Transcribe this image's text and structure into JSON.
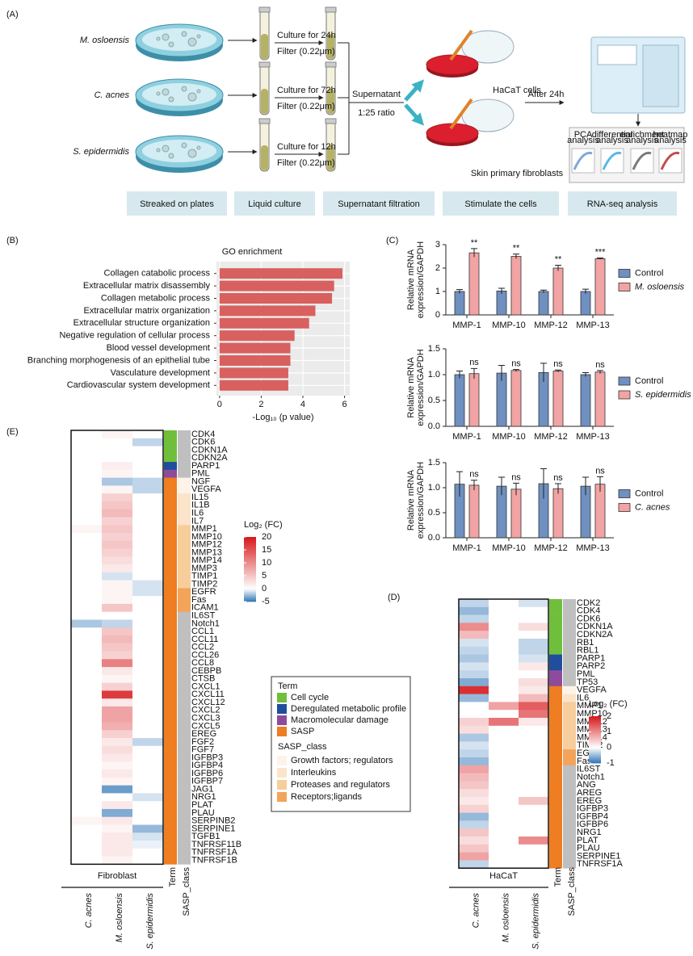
{
  "figure_a": {
    "panel": "(A)",
    "strains": [
      "M. osloensis",
      "C. acnes",
      "S. epidermidis"
    ],
    "culture": [
      {
        "time": "Culture for 24h",
        "filter": "Filter (0.22μm)"
      },
      {
        "time": "Culture for 72h",
        "filter": "Filter (0.22μm)"
      },
      {
        "time": "Culture for 12h",
        "filter": "Filter (0.22μm)"
      }
    ],
    "supernatant": "Supernatant",
    "ratio": "1:25 ratio",
    "cells": [
      "HaCaT cells",
      "Skin primary fibroblasts"
    ],
    "after": "After 24h",
    "analyses": [
      [
        "PCA",
        "analysis"
      ],
      [
        "differential",
        "analysis"
      ],
      [
        "enrichment",
        "analysis"
      ],
      [
        "heatmap",
        "analysis"
      ]
    ],
    "steps": [
      "Streaked on plates",
      "Liquid culture",
      "Supernatant filtration",
      "Stimulate the cells",
      "RNA-seq analysis"
    ]
  },
  "chart_data": [
    {
      "type": "hbar",
      "panel": "(B)",
      "title": "GO enrichment",
      "xlabel": "-Log₁₀ (p value)",
      "categories": [
        "Collagen catabolic process",
        "Extracellular matrix disassembly",
        "Collagen metabolic process",
        "Extracellular matrix organization",
        "Extracellular structure organization",
        "Negative regulation of cellular process",
        "Blood vessel development",
        "Branching morphogenesis of an epithelial tube",
        "Vasculature development",
        "Cardiovascular system development"
      ],
      "values": [
        5.9,
        5.5,
        5.4,
        4.6,
        4.3,
        3.6,
        3.4,
        3.4,
        3.3,
        3.3
      ],
      "color": "#d8605e",
      "xlim": [
        -0.15,
        6.25
      ],
      "xticks": [
        0,
        2,
        4,
        6
      ],
      "grid": true
    },
    {
      "type": "bar",
      "panel": "(C)",
      "ylabel": [
        "Relative mRNA",
        "expression/GAPDH"
      ],
      "categories": [
        "MMP-1",
        "MMP-10",
        "MMP-12",
        "MMP-13"
      ],
      "series": [
        {
          "name": "Control",
          "color": "#6f90c0",
          "values": [
            1.0,
            1.02,
            1.0,
            1.0
          ],
          "errors": [
            0.08,
            0.12,
            0.06,
            0.1
          ]
        },
        {
          "name": "M. osloensis",
          "color": "#f2a3a3",
          "values": [
            2.65,
            2.5,
            2.0,
            2.4
          ],
          "errors": [
            0.18,
            0.1,
            0.12,
            0.03
          ],
          "annotations": [
            "**",
            "**",
            "**",
            "***"
          ]
        }
      ],
      "ylim": [
        0,
        3
      ],
      "yticks": [
        0,
        1,
        2,
        3
      ]
    },
    {
      "type": "bar",
      "ylabel": [
        "Relative mRNA",
        "expression/GAPDH"
      ],
      "categories": [
        "MMP-1",
        "MMP-10",
        "MMP-12",
        "MMP-13"
      ],
      "series": [
        {
          "name": "Control",
          "color": "#6f90c0",
          "values": [
            1.0,
            1.03,
            1.04,
            1.0
          ],
          "errors": [
            0.07,
            0.15,
            0.18,
            0.04
          ]
        },
        {
          "name": "S. epidermidis",
          "color": "#f2a3a3",
          "values": [
            1.02,
            1.08,
            1.07,
            1.05
          ],
          "errors": [
            0.1,
            0.02,
            0.02,
            0.03
          ],
          "annotations": [
            "ns",
            "ns",
            "ns",
            "ns"
          ]
        }
      ],
      "ylim": [
        0,
        1.5
      ],
      "yticks": [
        {
          "value": 0,
          "label": "0.0"
        },
        0.5,
        {
          "value": 1,
          "label": "1.0"
        },
        1.5
      ]
    },
    {
      "type": "bar",
      "ylabel": [
        "Relative mRNA",
        "expression/GAPDH"
      ],
      "categories": [
        "MMP-1",
        "MMP-10",
        "MMP-12",
        "MMP-13"
      ],
      "series": [
        {
          "name": "Control",
          "color": "#6f90c0",
          "values": [
            1.07,
            1.03,
            1.08,
            1.03
          ],
          "errors": [
            0.25,
            0.18,
            0.3,
            0.18
          ]
        },
        {
          "name": "C. acnes",
          "color": "#f2a3a3",
          "values": [
            1.05,
            0.97,
            0.98,
            1.07
          ],
          "errors": [
            0.1,
            0.12,
            0.1,
            0.15
          ],
          "annotations": [
            "ns",
            "ns",
            "ns",
            "ns"
          ]
        }
      ],
      "ylim": [
        0,
        1.5
      ],
      "yticks": [
        {
          "value": 0,
          "label": "0.0"
        },
        0.5,
        {
          "value": 1,
          "label": "1.0"
        },
        1.5
      ]
    },
    {
      "type": "heatmap",
      "panel": "(E)",
      "group": "Fibroblast",
      "columns": [
        "C. acnes",
        "M. osloensis",
        "S. epidermidis"
      ],
      "extra_columns": [
        "Term",
        "SASP_class"
      ],
      "rows": [
        "CDK4",
        "CDK6",
        "CDKN1A",
        "CDKN2A",
        "PARP1",
        "PML",
        "NGF",
        "VEGFA",
        "IL15",
        "IL1B",
        "IL6",
        "IL7",
        "MMP1",
        "MMP10",
        "MMP12",
        "MMP13",
        "MMP14",
        "MMP3",
        "TIMP1",
        "TIMP2",
        "EGFR",
        "Fas",
        "ICAM1",
        "IL6ST",
        "Notch1",
        "CCL1",
        "CCL11",
        "CCL2",
        "CCL26",
        "CCL8",
        "CEBPB",
        "CTSB",
        "CXCL1",
        "CXCL11",
        "CXCL12",
        "CXCL2",
        "CXCL3",
        "CXCL5",
        "EREG",
        "FGF2",
        "FGF7",
        "IGFBP3",
        "IGFBP4",
        "IGFBP6",
        "IGFBP7",
        "JAG1",
        "NRG1",
        "PLAT",
        "PLAU",
        "SERPINB2",
        "SERPINE1",
        "TGFB1",
        "TNFRSF11B",
        "TNFRSF1A",
        "TNFRSF1B"
      ],
      "values": [
        [
          0,
          1,
          0
        ],
        [
          0,
          0,
          -1.5
        ],
        [
          0,
          0,
          0
        ],
        [
          0,
          0,
          0
        ],
        [
          0,
          1.5,
          0
        ],
        [
          0,
          1,
          0
        ],
        [
          0,
          -2,
          -1.5
        ],
        [
          0,
          1,
          -1.5
        ],
        [
          0,
          4,
          0
        ],
        [
          0,
          5,
          0
        ],
        [
          0,
          6,
          0
        ],
        [
          0,
          4,
          0
        ],
        [
          1,
          5,
          0
        ],
        [
          0,
          4,
          0
        ],
        [
          0,
          5,
          0
        ],
        [
          0,
          4,
          0
        ],
        [
          0,
          3,
          0
        ],
        [
          0,
          2,
          0
        ],
        [
          0,
          -1,
          0
        ],
        [
          0,
          1,
          -1
        ],
        [
          0,
          1,
          -1
        ],
        [
          0,
          1,
          0
        ],
        [
          0,
          5,
          0
        ],
        [
          0,
          0,
          0
        ],
        [
          -2,
          -1.5,
          0
        ],
        [
          0,
          5,
          0
        ],
        [
          0,
          6,
          0
        ],
        [
          0,
          5,
          0
        ],
        [
          0,
          4,
          0
        ],
        [
          0,
          11,
          0
        ],
        [
          0,
          2,
          0
        ],
        [
          0,
          1,
          0
        ],
        [
          0,
          4,
          0
        ],
        [
          0,
          17,
          0
        ],
        [
          0,
          2,
          0
        ],
        [
          0,
          8,
          0
        ],
        [
          0,
          8,
          0
        ],
        [
          0,
          7,
          0
        ],
        [
          0,
          4,
          0
        ],
        [
          0,
          2,
          -1.5
        ],
        [
          0,
          3,
          0
        ],
        [
          0,
          2,
          0
        ],
        [
          0,
          1,
          0
        ],
        [
          0,
          2,
          0
        ],
        [
          0,
          1,
          0
        ],
        [
          0,
          -3.5,
          0
        ],
        [
          0,
          0,
          -1
        ],
        [
          0,
          2,
          0
        ],
        [
          0,
          -3,
          0
        ],
        [
          1,
          2,
          0
        ],
        [
          0,
          1,
          -2.5
        ],
        [
          0,
          2,
          -1
        ],
        [
          0,
          2,
          -0.5
        ],
        [
          0,
          2,
          0
        ],
        [
          0,
          1,
          0
        ]
      ],
      "term": [
        0,
        0,
        0,
        0,
        1,
        2,
        3,
        3,
        3,
        3,
        3,
        3,
        3,
        3,
        3,
        3,
        3,
        3,
        3,
        3,
        3,
        3,
        3,
        3,
        3,
        3,
        3,
        3,
        3,
        3,
        3,
        3,
        3,
        3,
        3,
        3,
        3,
        3,
        3,
        3,
        3,
        3,
        3,
        3,
        3,
        3,
        3,
        3,
        3,
        3,
        3,
        3,
        3,
        3,
        3
      ],
      "sasp_class": [
        null,
        null,
        null,
        null,
        null,
        null,
        0,
        0,
        1,
        1,
        1,
        1,
        2,
        2,
        2,
        2,
        2,
        2,
        2,
        2,
        3,
        3,
        3,
        null,
        null,
        null,
        null,
        null,
        null,
        null,
        null,
        null,
        null,
        null,
        null,
        null,
        null,
        null,
        null,
        null,
        null,
        null,
        null,
        null,
        null,
        null,
        null,
        null,
        null,
        null,
        null,
        null,
        null,
        null,
        null
      ],
      "colorbar_title": "Log₂ (FC)",
      "zlim": [
        -5,
        20
      ],
      "zticks": [
        20,
        15,
        10,
        5,
        0,
        -5
      ],
      "colors": {
        "low": "#2c73b4",
        "mid": "#ffffff",
        "high": "#d7191c"
      }
    },
    {
      "type": "heatmap",
      "panel": "(D)",
      "group": "HaCaT",
      "columns": [
        "C. acnes",
        "M. osloensis",
        "S. epidermidis"
      ],
      "extra_columns": [
        "Term",
        "SASP_class"
      ],
      "rows": [
        "CDK2",
        "CDK4",
        "CDK6",
        "CDKN1A",
        "CDKN2A",
        "RB1",
        "RBL1",
        "PARP1",
        "PARP2",
        "PML",
        "TP53",
        "VEGFA",
        "IL6",
        "MMP1",
        "MMP10",
        "MMP12",
        "MMP13",
        "MMP14",
        "TIMP2",
        "EGFR",
        "Fas",
        "IL6ST",
        "Notch1",
        "ANG",
        "AREG",
        "EREG",
        "IGFBP3",
        "IGFBP4",
        "IGFBP6",
        "NRG1",
        "PLAT",
        "PLAU",
        "SERPINE1",
        "TNFRSF1A"
      ],
      "values": [
        [
          -0.3,
          0,
          -0.2
        ],
        [
          -0.5,
          0,
          0
        ],
        [
          -0.3,
          0,
          0
        ],
        [
          1,
          0,
          0.3
        ],
        [
          0.6,
          0,
          0
        ],
        [
          -0.2,
          0,
          -0.3
        ],
        [
          -0.3,
          0,
          -0.3
        ],
        [
          -0.4,
          0,
          -0.2
        ],
        [
          -0.2,
          0,
          0.2
        ],
        [
          -0.3,
          0,
          0
        ],
        [
          -0.6,
          0,
          0.3
        ],
        [
          1.8,
          0,
          0.2
        ],
        [
          -0.5,
          0,
          0.6
        ],
        [
          0,
          0.8,
          1.4
        ],
        [
          0,
          0,
          1.2
        ],
        [
          0.4,
          1.2,
          0.2
        ],
        [
          0.3,
          0,
          0
        ],
        [
          -0.4,
          0,
          0
        ],
        [
          -0.2,
          0,
          0
        ],
        [
          -0.3,
          0,
          0
        ],
        [
          -0.5,
          0,
          0
        ],
        [
          0.8,
          0,
          0
        ],
        [
          0.6,
          0,
          0
        ],
        [
          0.5,
          0,
          0
        ],
        [
          0.3,
          0,
          0
        ],
        [
          0.2,
          0,
          0.5
        ],
        [
          0.4,
          0,
          0
        ],
        [
          -0.5,
          0,
          0
        ],
        [
          -0.3,
          0,
          0
        ],
        [
          0.5,
          0,
          0
        ],
        [
          0.3,
          0,
          1
        ],
        [
          0.5,
          0,
          0
        ],
        [
          0.8,
          0,
          0
        ],
        [
          -0.3,
          0,
          0
        ]
      ],
      "term": [
        0,
        0,
        0,
        0,
        0,
        0,
        0,
        1,
        1,
        2,
        2,
        3,
        3,
        3,
        3,
        3,
        3,
        3,
        3,
        3,
        3,
        3,
        3,
        3,
        3,
        3,
        3,
        3,
        3,
        3,
        3,
        3,
        3,
        3
      ],
      "sasp_class": [
        null,
        null,
        null,
        null,
        null,
        null,
        null,
        null,
        null,
        null,
        null,
        0,
        1,
        2,
        2,
        2,
        2,
        2,
        2,
        3,
        3,
        null,
        null,
        null,
        null,
        null,
        null,
        null,
        null,
        null,
        null,
        null,
        null,
        null
      ],
      "colorbar_title": "Log₂ (FC)",
      "zlim": [
        -1,
        2
      ],
      "zticks": [
        2,
        1,
        0,
        -1
      ],
      "colors": {
        "low": "#2c73b4",
        "mid": "#ffffff",
        "high": "#d7191c"
      }
    }
  ],
  "term_legend": {
    "term_title": "Term",
    "terms": [
      {
        "name": "Cell cycle",
        "color": "#6fbf3c"
      },
      {
        "name": "Deregulated metabolic profile",
        "color": "#1f4e9c"
      },
      {
        "name": "Macromolecular damage",
        "color": "#8e4b9c"
      },
      {
        "name": "SASP",
        "color": "#ef7d21"
      }
    ],
    "class_title": "SASP_class",
    "classes": [
      {
        "name": "Growth factors; regulators",
        "color": "#fdf3e8"
      },
      {
        "name": "Interleukins",
        "color": "#fbe4ca"
      },
      {
        "name": "Proteases and regulators",
        "color": "#f7cd9c"
      },
      {
        "name": "Receptors;ligands",
        "color": "#f3a35a"
      }
    ],
    "unclassified_color": "#bfbfbf"
  }
}
